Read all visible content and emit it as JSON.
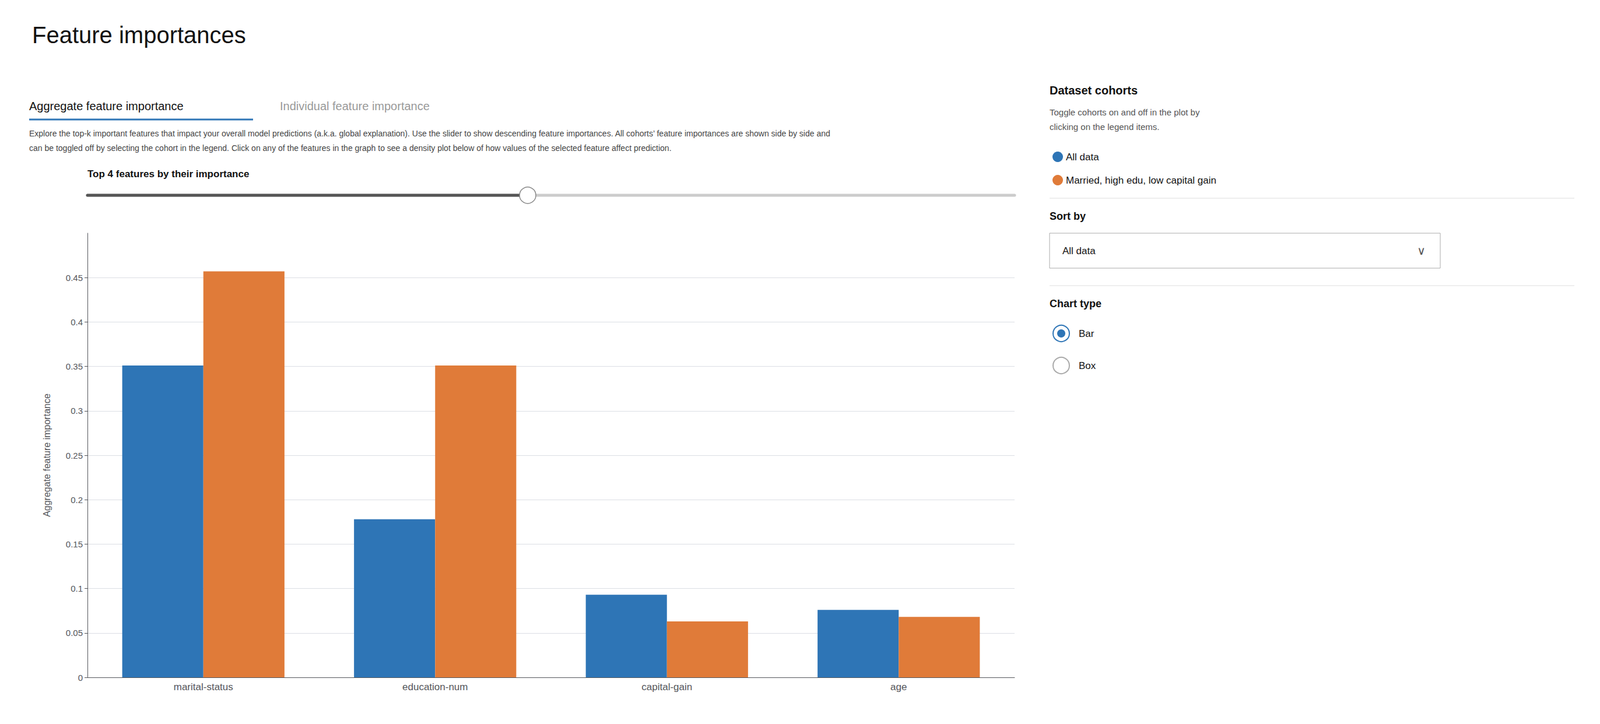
{
  "chart_data": {
    "type": "bar",
    "title": "Feature importances",
    "categories": [
      "marital-status",
      "education-num",
      "capital-gain",
      "age"
    ],
    "series": [
      {
        "name": "All data",
        "color": "#2E75B6",
        "values": [
          0.351,
          0.178,
          0.093,
          0.076
        ]
      },
      {
        "name": "Married, high edu, low capital gain",
        "color": "#E07B39",
        "values": [
          0.457,
          0.351,
          0.063,
          0.068
        ]
      }
    ],
    "ylabel": "Aggregate feature importance",
    "ylim": [
      0,
      0.5
    ],
    "yticks": [
      0,
      0.05,
      0.1,
      0.15,
      0.2,
      0.25,
      0.3,
      0.35,
      0.4,
      0.45
    ],
    "grid": true,
    "legend": "upper right",
    "annotations": [
      "Aggregate feature importance",
      "Individual feature importance",
      "Explore the top-k important features that impact your overall model predictions (a.k.a. global explanation). Use the slider to show descending feature importances. All cohorts’ feature importances are shown side by side and",
      "can be toggled off by selecting the cohort in the legend. Click on any of the features in the graph to see a density plot below of how values of the selected feature affect prediction.",
      "Top 4 features by their importance",
      "Dataset cohorts",
      "Toggle cohorts on and off in the plot by",
      "clicking on the legend items.",
      "Sort by",
      "All data",
      "∨",
      "Chart type",
      "Bar",
      "Box"
    ]
  }
}
